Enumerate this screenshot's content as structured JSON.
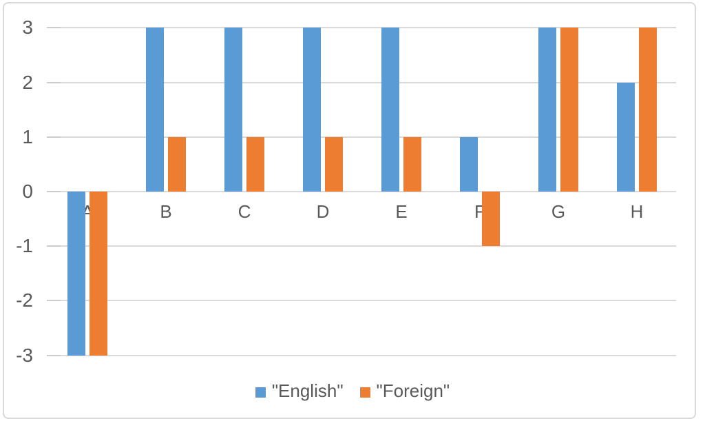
{
  "colors": {
    "series_english": "#5B9BD5",
    "series_foreign": "#ED7D31",
    "gridline": "#D9D9D9",
    "tick": "#CCCCCC",
    "text": "#595959",
    "frame_border": "#D9D9D9",
    "background": "#FFFFFF"
  },
  "chart_data": {
    "type": "bar",
    "title": "",
    "xlabel": "",
    "ylabel": "",
    "categories": [
      "A",
      "B",
      "C",
      "D",
      "E",
      "F",
      "G",
      "H"
    ],
    "series": [
      {
        "name": "\"English\"",
        "color_key": "series_english",
        "values": [
          -3,
          3,
          3,
          3,
          3,
          1,
          3,
          2
        ]
      },
      {
        "name": "\"Foreign\"",
        "color_key": "series_foreign",
        "values": [
          -3,
          1,
          1,
          1,
          1,
          -1,
          3,
          3
        ]
      }
    ],
    "ylim": [
      -3,
      3
    ],
    "yticks": [
      3,
      2,
      1,
      0,
      -1,
      -2,
      -3
    ],
    "grid": true,
    "legend_position": "bottom",
    "baseline": 0
  }
}
